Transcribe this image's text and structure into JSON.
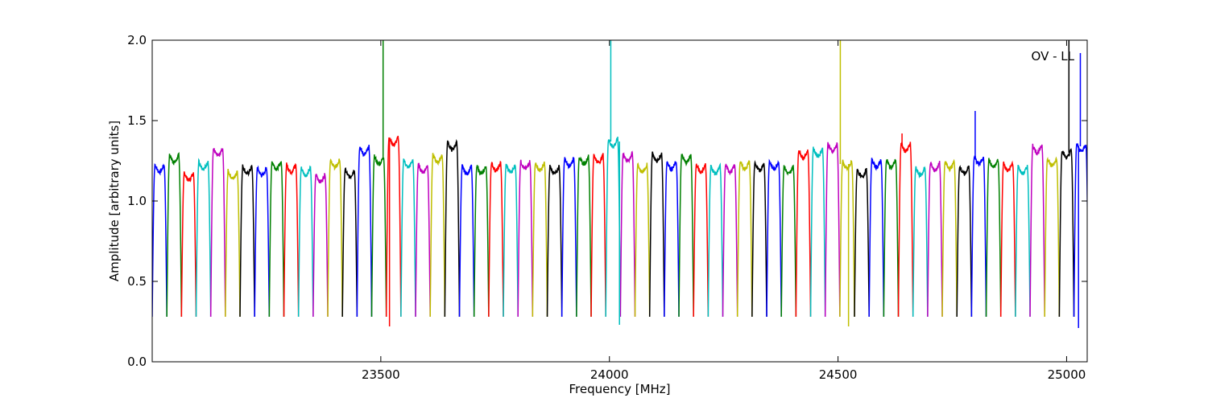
{
  "chart_data": {
    "type": "line",
    "annotation": "OV - LL",
    "xlabel": "Frequency [MHz]",
    "ylabel": "Amplitude [arbitrary units]",
    "xlim": [
      23000,
      25045
    ],
    "ylim": [
      0.0,
      2.0
    ],
    "x_ticks": [
      23500,
      24000,
      24500,
      25000
    ],
    "y_ticks": [
      0.0,
      0.5,
      1.0,
      1.5,
      2.0
    ],
    "x_tick_labels": [
      "23500",
      "24000",
      "24500",
      "25000"
    ],
    "y_tick_labels": [
      "0.0",
      "0.5",
      "1.0",
      "1.5",
      "2.0"
    ],
    "grid": false,
    "legend": "none",
    "color_cycle": [
      "#0000ff",
      "#008000",
      "#ff0000",
      "#00bfbf",
      "#bf00bf",
      "#bfbf00",
      "#000000"
    ],
    "band_width_mhz": 32,
    "band_starts_mhz": [
      23000,
      23032,
      23064,
      23096,
      23128,
      23160,
      23192,
      23224,
      23256,
      23288,
      23320,
      23352,
      23384,
      23416,
      23448,
      23480,
      23512,
      23544,
      23576,
      23608,
      23640,
      23672,
      23704,
      23736,
      23768,
      23800,
      23832,
      23864,
      23896,
      23928,
      23960,
      23992,
      24024,
      24056,
      24088,
      24120,
      24152,
      24184,
      24216,
      24248,
      24280,
      24312,
      24344,
      24376,
      24408,
      24440,
      24472,
      24504,
      24536,
      24568,
      24600,
      24632,
      24664,
      24696,
      24728,
      24760,
      24792,
      24824,
      24856,
      24888,
      24920,
      24952,
      24984,
      25016
    ],
    "band_plateau": [
      1.21,
      1.27,
      1.16,
      1.23,
      1.31,
      1.17,
      1.2,
      1.19,
      1.23,
      1.21,
      1.19,
      1.15,
      1.24,
      1.18,
      1.32,
      1.26,
      1.38,
      1.24,
      1.21,
      1.27,
      1.35,
      1.2,
      1.2,
      1.22,
      1.21,
      1.23,
      1.22,
      1.2,
      1.25,
      1.26,
      1.27,
      1.37,
      1.28,
      1.21,
      1.28,
      1.23,
      1.27,
      1.21,
      1.2,
      1.21,
      1.23,
      1.22,
      1.23,
      1.2,
      1.3,
      1.31,
      1.34,
      1.23,
      1.18,
      1.24,
      1.24,
      1.34,
      1.19,
      1.22,
      1.23,
      1.2,
      1.26,
      1.24,
      1.22,
      1.2,
      1.33,
      1.25,
      1.3,
      1.34
    ],
    "band_min": 0.28,
    "spikes": [
      {
        "x": 23505,
        "y": 2.0
      },
      {
        "x": 23519,
        "y": 0.22
      },
      {
        "x": 24003,
        "y": 2.0
      },
      {
        "x": 24022,
        "y": 0.23
      },
      {
        "x": 24505,
        "y": 2.0
      },
      {
        "x": 24523,
        "y": 0.22
      },
      {
        "x": 24640,
        "y": 1.42
      },
      {
        "x": 24800,
        "y": 1.56
      },
      {
        "x": 25005,
        "y": 2.0
      },
      {
        "x": 25026,
        "y": 0.21
      },
      {
        "x": 25030,
        "y": 1.92
      }
    ]
  }
}
